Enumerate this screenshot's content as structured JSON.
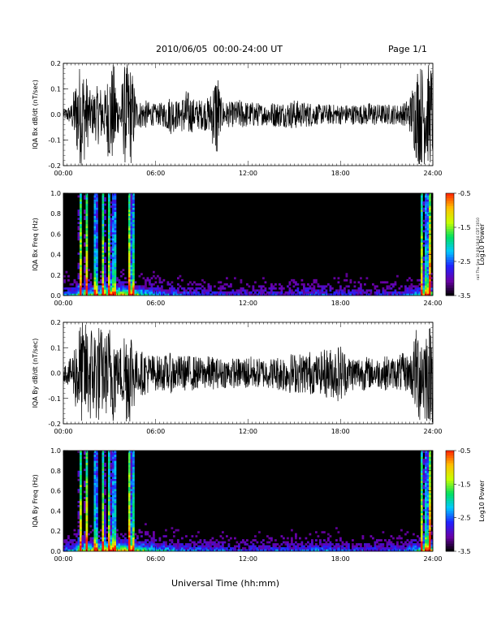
{
  "header": {
    "title": "2010/06/05  00:00-24:00 UT",
    "page": "Page 1/1"
  },
  "side_stamp": "rail Thu Sep 30 08:18:04 CDT 2010",
  "xaxis_title": "Universal Time (hh:mm)",
  "colorbar": {
    "label": "Log10 Power",
    "ticks": [
      "-0.5",
      "-1.5",
      "-2.5",
      "-3.5"
    ],
    "range": [
      -3.5,
      -0.5
    ],
    "colors": [
      "#000000",
      "#6a00a8",
      "#2020ff",
      "#00c8ff",
      "#00e060",
      "#c8ff00",
      "#ffc000",
      "#ff2000"
    ]
  },
  "chart_data": [
    {
      "type": "line",
      "title": "",
      "ylabel": "IQA Bx dB/dt (nT/sec)",
      "xlabel": "",
      "x_ticks": [
        "00:00",
        "06:00",
        "12:00",
        "18:00",
        "24:00"
      ],
      "y_ticks": [
        "0.2",
        "0.1",
        "0.0",
        "-0.1",
        "-0.2"
      ],
      "xlim": [
        0,
        24
      ],
      "ylim": [
        -0.2,
        0.2
      ],
      "series": [
        {
          "x": [
            0.0,
            0.5,
            1.0,
            1.3,
            1.8,
            2.3,
            2.7,
            3.0,
            3.3,
            3.6,
            4.0,
            4.4,
            4.8,
            5.2,
            5.6,
            6.0,
            6.5,
            7.0,
            7.5,
            8.0,
            8.5,
            9.0,
            9.5,
            10.0,
            10.2,
            10.5,
            11.0,
            11.5,
            12.0,
            12.5,
            13.0,
            13.5,
            14.0,
            14.5,
            15.0,
            15.5,
            16.0,
            16.5,
            17.0,
            17.5,
            18.0,
            18.5,
            19.0,
            19.5,
            20.0,
            20.5,
            21.0,
            21.5,
            22.0,
            22.5,
            23.0,
            23.5,
            24.0
          ],
          "amplitude": [
            0.02,
            0.04,
            0.2,
            0.2,
            0.08,
            0.12,
            0.1,
            0.2,
            0.2,
            0.06,
            0.2,
            0.2,
            0.05,
            0.06,
            0.05,
            0.04,
            0.05,
            0.08,
            0.05,
            0.1,
            0.06,
            0.06,
            0.07,
            0.2,
            0.07,
            0.05,
            0.05,
            0.06,
            0.05,
            0.05,
            0.04,
            0.05,
            0.05,
            0.05,
            0.06,
            0.05,
            0.05,
            0.04,
            0.04,
            0.04,
            0.04,
            0.04,
            0.04,
            0.04,
            0.05,
            0.04,
            0.04,
            0.04,
            0.04,
            0.07,
            0.2,
            0.2,
            0.2
          ]
        }
      ]
    },
    {
      "type": "heatmap",
      "title": "",
      "ylabel": "IQA Bx Freq (Hz)",
      "xlabel": "",
      "x_ticks": [
        "00:00",
        "06:00",
        "12:00",
        "18:00",
        "24:00"
      ],
      "y_ticks": [
        "1.0",
        "0.8",
        "0.6",
        "0.4",
        "0.2",
        "0.0"
      ],
      "xlim": [
        0,
        24
      ],
      "ylim": [
        0,
        1.0
      ],
      "colorbar_label": "Log10 Power",
      "colorbar_range": [
        -3.5,
        -0.5
      ],
      "bursts_hours": [
        1.1,
        1.5,
        2.1,
        2.6,
        3.0,
        3.3,
        4.3,
        4.5,
        23.3,
        23.6,
        23.8
      ],
      "activity_hours": [
        0.0,
        2.0,
        4.0,
        6.0,
        8.0,
        10.0,
        12.0,
        14.0,
        16.0,
        18.0,
        20.0,
        22.0,
        24.0
      ],
      "activity_level": [
        0.35,
        0.8,
        0.9,
        0.45,
        0.35,
        0.3,
        0.25,
        0.3,
        0.35,
        0.3,
        0.25,
        0.3,
        0.8
      ]
    },
    {
      "type": "line",
      "title": "",
      "ylabel": "IQA By dB/dt (nT/sec)",
      "xlabel": "",
      "x_ticks": [
        "00:00",
        "06:00",
        "12:00",
        "18:00",
        "24:00"
      ],
      "y_ticks": [
        "0.2",
        "0.1",
        "0.0",
        "-0.1",
        "-0.2"
      ],
      "xlim": [
        0,
        24
      ],
      "ylim": [
        -0.2,
        0.2
      ],
      "series": [
        {
          "x": [
            0.0,
            0.5,
            1.0,
            1.3,
            1.8,
            2.3,
            2.7,
            3.0,
            3.3,
            3.6,
            4.0,
            4.4,
            4.8,
            5.2,
            5.6,
            6.0,
            6.5,
            7.0,
            7.5,
            8.0,
            8.5,
            9.0,
            9.5,
            10.0,
            10.5,
            11.0,
            11.5,
            12.0,
            12.5,
            13.0,
            13.5,
            14.0,
            14.5,
            15.0,
            15.5,
            16.0,
            16.5,
            17.0,
            17.5,
            18.0,
            18.5,
            19.0,
            19.5,
            20.0,
            20.5,
            21.0,
            21.5,
            22.0,
            22.5,
            23.0,
            23.5,
            24.0
          ],
          "amplitude": [
            0.03,
            0.06,
            0.2,
            0.2,
            0.2,
            0.2,
            0.15,
            0.2,
            0.2,
            0.08,
            0.2,
            0.2,
            0.08,
            0.09,
            0.08,
            0.07,
            0.07,
            0.08,
            0.07,
            0.07,
            0.07,
            0.06,
            0.07,
            0.06,
            0.06,
            0.06,
            0.06,
            0.07,
            0.06,
            0.06,
            0.06,
            0.07,
            0.08,
            0.08,
            0.08,
            0.09,
            0.07,
            0.1,
            0.1,
            0.12,
            0.07,
            0.07,
            0.07,
            0.06,
            0.06,
            0.07,
            0.06,
            0.08,
            0.07,
            0.2,
            0.2,
            0.2
          ]
        }
      ]
    },
    {
      "type": "heatmap",
      "title": "",
      "ylabel": "IQA By Freq (Hz)",
      "xlabel": "Universal Time (hh:mm)",
      "x_ticks": [
        "00:00",
        "06:00",
        "12:00",
        "18:00",
        "24:00"
      ],
      "y_ticks": [
        "1.0",
        "0.8",
        "0.6",
        "0.4",
        "0.2",
        "0.0"
      ],
      "xlim": [
        0,
        24
      ],
      "ylim": [
        0,
        1.0
      ],
      "colorbar_label": "Log10 Power",
      "colorbar_range": [
        -3.5,
        -0.5
      ],
      "bursts_hours": [
        1.1,
        1.5,
        2.1,
        2.6,
        3.0,
        3.3,
        4.3,
        4.5,
        23.3,
        23.6,
        23.8
      ],
      "activity_hours": [
        0.0,
        2.0,
        4.0,
        6.0,
        8.0,
        10.0,
        12.0,
        14.0,
        16.0,
        18.0,
        20.0,
        22.0,
        24.0
      ],
      "activity_level": [
        0.35,
        0.85,
        0.95,
        0.55,
        0.4,
        0.35,
        0.3,
        0.35,
        0.4,
        0.35,
        0.3,
        0.35,
        0.85
      ]
    }
  ]
}
